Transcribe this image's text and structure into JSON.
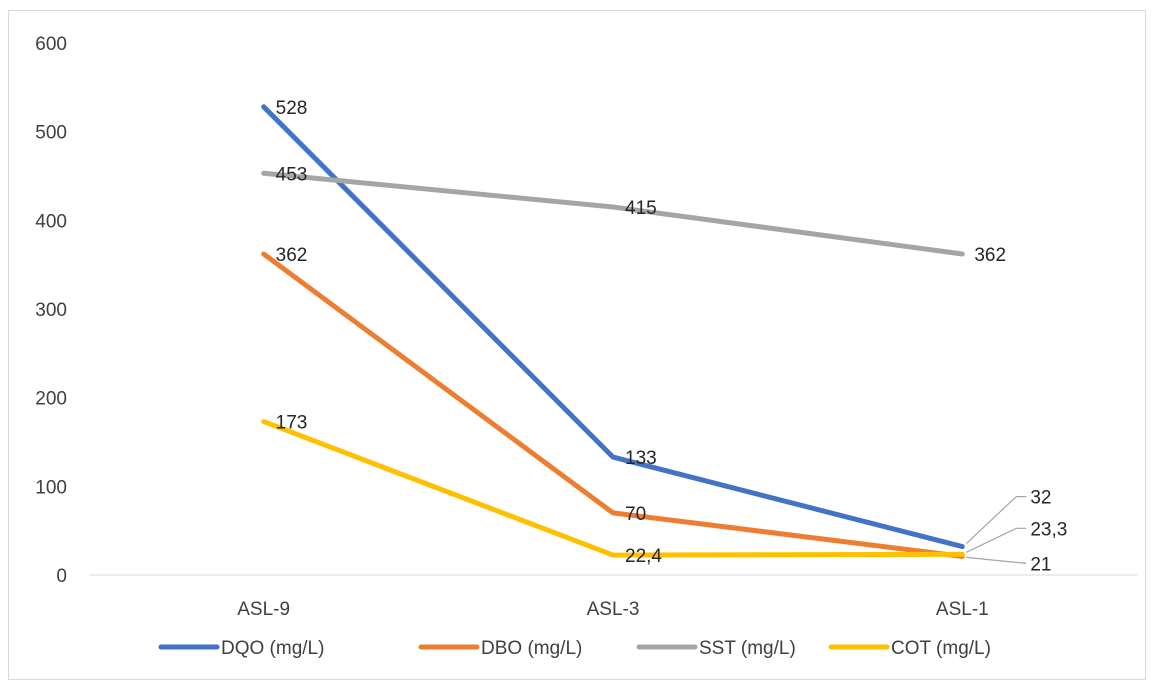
{
  "chart_data": {
    "type": "line",
    "categories": [
      "ASL-9",
      "ASL-3",
      "ASL-1"
    ],
    "ylim": [
      0,
      600
    ],
    "yticks": [
      0,
      100,
      200,
      300,
      400,
      500,
      600
    ],
    "grid": false,
    "legend_position": "bottom",
    "series": [
      {
        "name": "DQO (mg/L)",
        "color": "#4472c4",
        "values": [
          528,
          133,
          32
        ],
        "labels": [
          "528",
          "133",
          "32"
        ]
      },
      {
        "name": "DBO (mg/L)",
        "color": "#ed7d31",
        "values": [
          362,
          70,
          21
        ],
        "labels": [
          "362",
          "70",
          "21"
        ]
      },
      {
        "name": "SST (mg/L)",
        "color": "#a5a5a5",
        "values": [
          453,
          415,
          362
        ],
        "labels": [
          "453",
          "415",
          "362"
        ]
      },
      {
        "name": "COT (mg/L)",
        "color": "#ffc000",
        "values": [
          173,
          22.4,
          23.3
        ],
        "labels": [
          "173",
          "22,4",
          "23,3"
        ]
      }
    ]
  }
}
